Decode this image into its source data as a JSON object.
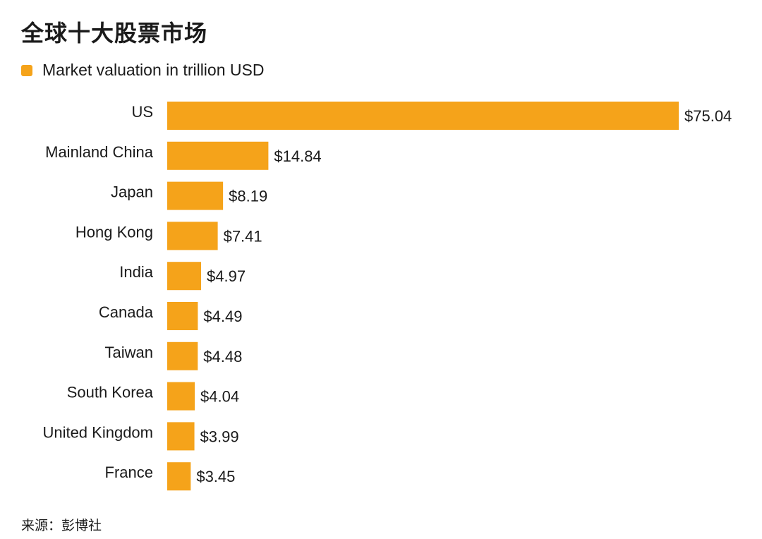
{
  "title": "全球十大股票市场",
  "legend_label": "Market valuation in trillion USD",
  "source": "来源：彭博社",
  "colors": {
    "bar": "#F5A31A",
    "text": "#1a1a1a"
  },
  "chart_data": {
    "type": "bar",
    "orientation": "horizontal",
    "categories": [
      "US",
      "Mainland China",
      "Japan",
      "Hong Kong",
      "India",
      "Canada",
      "Taiwan",
      "South Korea",
      "United Kingdom",
      "France"
    ],
    "series": [
      {
        "name": "Market valuation in trillion USD",
        "values": [
          75.04,
          14.84,
          8.19,
          7.41,
          4.97,
          4.49,
          4.48,
          4.04,
          3.99,
          3.45
        ]
      }
    ],
    "value_labels": [
      "$75.04",
      "$14.84",
      "$8.19",
      "$7.41",
      "$4.97",
      "$4.49",
      "$4.48",
      "$4.04",
      "$3.99",
      "$3.45"
    ],
    "legend_position": "top-left",
    "grid": false
  }
}
